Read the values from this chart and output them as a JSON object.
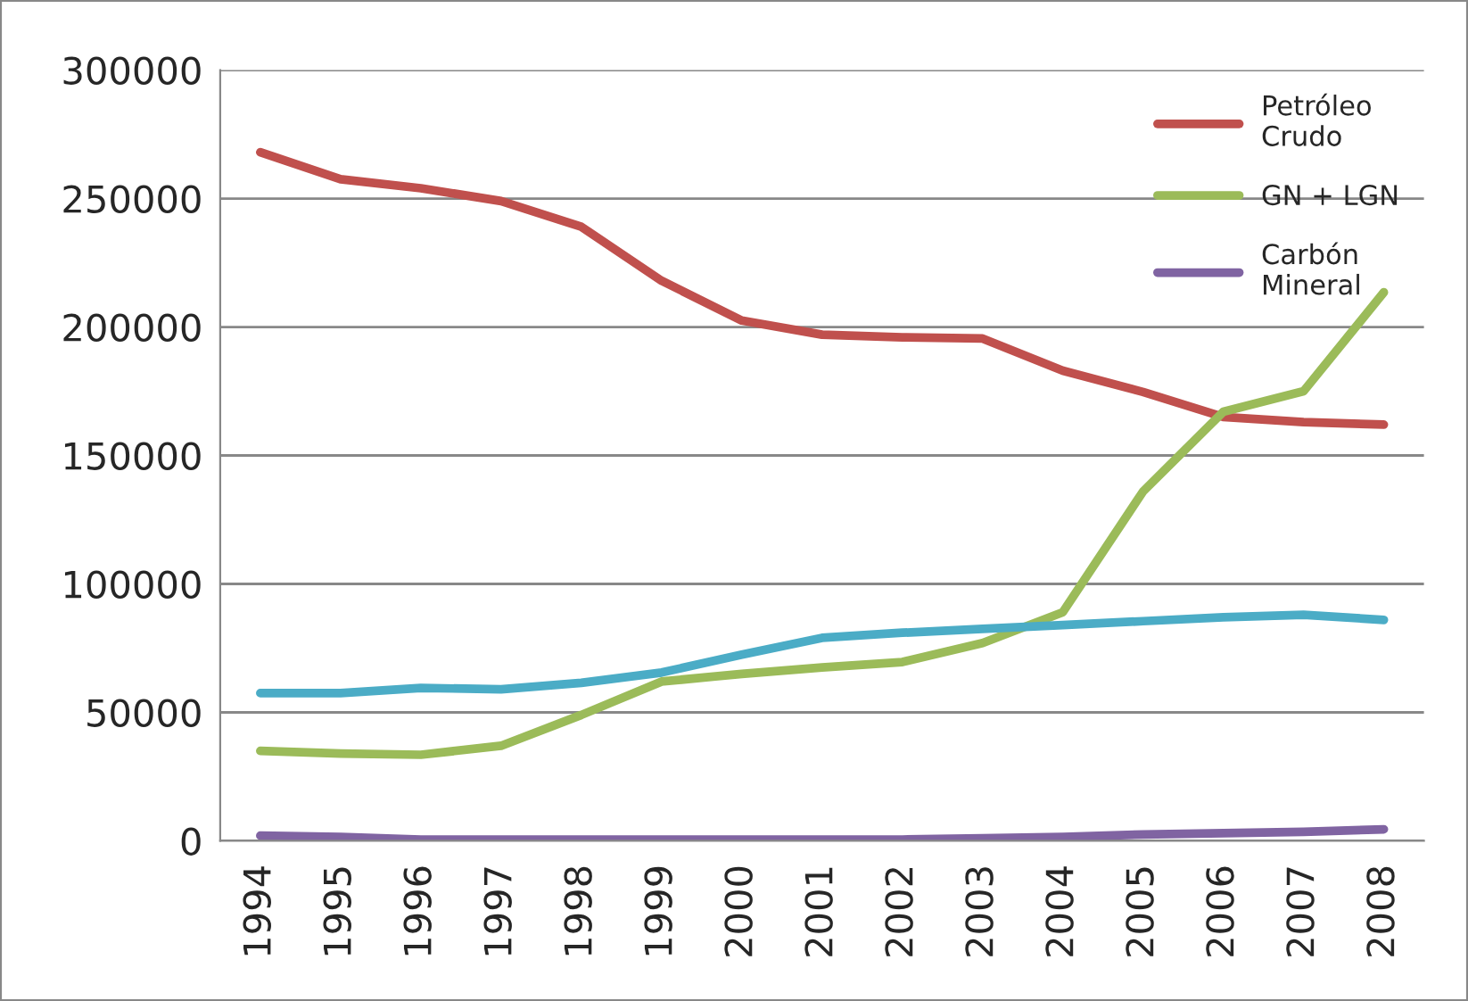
{
  "chart_data": {
    "type": "line",
    "categories": [
      "1994",
      "1995",
      "1996",
      "1997",
      "1998",
      "1999",
      "2000",
      "2001",
      "2002",
      "2003",
      "2004",
      "2005",
      "2006",
      "2007",
      "2008"
    ],
    "series": [
      {
        "name": "Petróleo\nCrudo",
        "color": "#c0504d",
        "values": [
          268000,
          257500,
          254000,
          249000,
          239000,
          218000,
          202500,
          197000,
          196000,
          195500,
          183000,
          174700,
          165000,
          163000,
          162000
        ]
      },
      {
        "name": "GN + LGN",
        "color": "#9bbb59",
        "values": [
          35000,
          34000,
          33500,
          37000,
          49000,
          62000,
          65000,
          67500,
          69600,
          77000,
          89000,
          136000,
          167000,
          175000,
          213500
        ]
      },
      {
        "color": "#4bacc6",
        "values": [
          57500,
          57500,
          59500,
          59000,
          61500,
          65500,
          72500,
          79000,
          81000,
          82500,
          84000,
          85500,
          87000,
          88000,
          86000
        ]
      },
      {
        "name": "Carbón\nMineral",
        "color": "#8064a2",
        "values": [
          2000,
          1500,
          500,
          500,
          500,
          500,
          500,
          500,
          500,
          1000,
          1500,
          2500,
          3000,
          3500,
          4500
        ]
      }
    ],
    "ylim": [
      0,
      300000
    ],
    "yticks": [
      0,
      50000,
      100000,
      150000,
      200000,
      250000,
      300000
    ],
    "grid": "y",
    "legend": "top right",
    "marker": "none",
    "line_style": "solid"
  }
}
